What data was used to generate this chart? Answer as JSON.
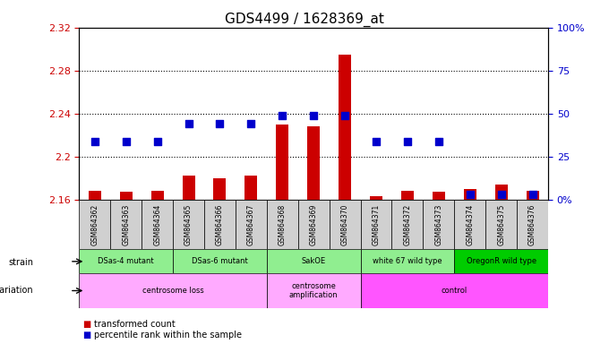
{
  "title": "GDS4499 / 1628369_at",
  "samples": [
    "GSM864362",
    "GSM864363",
    "GSM864364",
    "GSM864365",
    "GSM864366",
    "GSM864367",
    "GSM864368",
    "GSM864369",
    "GSM864370",
    "GSM864371",
    "GSM864372",
    "GSM864373",
    "GSM864374",
    "GSM864375",
    "GSM864376"
  ],
  "red_values": [
    2.168,
    2.167,
    2.168,
    2.182,
    2.18,
    2.182,
    2.23,
    2.228,
    2.295,
    2.163,
    2.168,
    2.167,
    2.17,
    2.174,
    2.168
  ],
  "blue_values_pct": [
    33.5,
    33.5,
    33.5,
    44.0,
    44.0,
    44.0,
    49.0,
    49.0,
    49.0,
    33.5,
    33.5,
    33.5,
    3.0,
    3.0,
    3.0
  ],
  "ylim_left": [
    2.16,
    2.32
  ],
  "ylim_right": [
    0,
    100
  ],
  "yticks_left": [
    2.16,
    2.2,
    2.24,
    2.28,
    2.32
  ],
  "yticks_right": [
    0,
    25,
    50,
    75,
    100
  ],
  "ytick_labels_left": [
    "2.16",
    "2.2",
    "2.24",
    "2.28",
    "2.32"
  ],
  "ytick_labels_right": [
    "0%",
    "25",
    "50",
    "75",
    "100%"
  ],
  "hgrid_lines": [
    2.2,
    2.24,
    2.28
  ],
  "strain_groups": [
    {
      "label": "DSas-4 mutant",
      "start": 0,
      "end": 2,
      "color": "#90ee90"
    },
    {
      "label": "DSas-6 mutant",
      "start": 3,
      "end": 5,
      "color": "#90ee90"
    },
    {
      "label": "SakOE",
      "start": 6,
      "end": 8,
      "color": "#90ee90"
    },
    {
      "label": "white 67 wild type",
      "start": 9,
      "end": 11,
      "color": "#90ee90"
    },
    {
      "label": "OregonR wild type",
      "start": 12,
      "end": 14,
      "color": "#00cc00"
    }
  ],
  "geno_groups": [
    {
      "label": "centrosome loss",
      "start": 0,
      "end": 5,
      "color": "#ffaaff"
    },
    {
      "label": "centrosome\namplification",
      "start": 6,
      "end": 8,
      "color": "#ffaaff"
    },
    {
      "label": "control",
      "start": 9,
      "end": 14,
      "color": "#ff55ff"
    }
  ],
  "red_color": "#cc0000",
  "blue_color": "#0000cc",
  "bar_width": 0.4,
  "dot_size": 28,
  "background_color": "#ffffff",
  "tick_color_left": "#cc0000",
  "tick_color_right": "#0000cc",
  "title_fontsize": 11,
  "sample_box_color": "#d0d0d0"
}
